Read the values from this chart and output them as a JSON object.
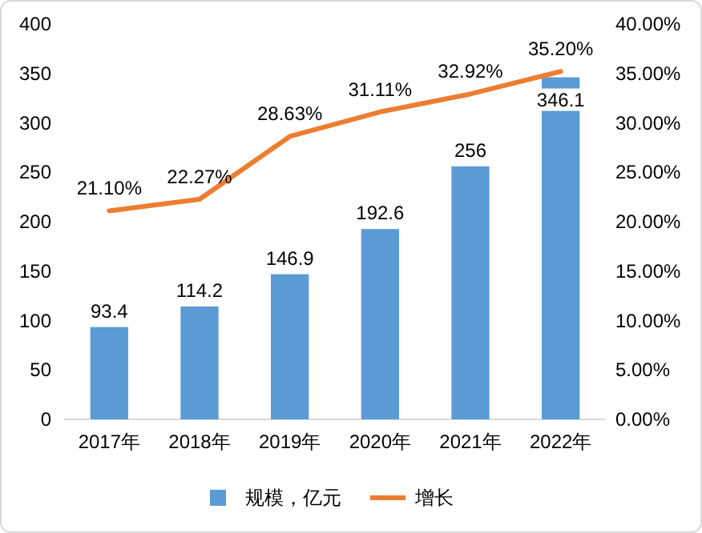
{
  "chart_data": {
    "type": "bar",
    "categories": [
      "2017年",
      "2018年",
      "2019年",
      "2020年",
      "2021年",
      "2022年"
    ],
    "series": [
      {
        "name": "规模，亿元",
        "color": "#5b9bd5",
        "values": [
          93.4,
          114.2,
          146.9,
          192.6,
          256,
          346.1
        ],
        "value_labels": [
          "93.4",
          "114.2",
          "146.9",
          "192.6",
          "256",
          "346.1"
        ]
      },
      {
        "name": "增长",
        "type": "line",
        "axis": "y2",
        "color": "#ed7d31",
        "values": [
          21.1,
          22.27,
          28.63,
          31.11,
          32.92,
          35.2
        ],
        "value_labels": [
          "21.10%",
          "22.27%",
          "28.63%",
          "31.11%",
          "32.92%",
          "35.20%"
        ]
      }
    ],
    "ylim": [
      0,
      400
    ],
    "yticks": [
      0,
      50,
      100,
      150,
      200,
      250,
      300,
      350,
      400
    ],
    "y2lim": [
      0,
      40
    ],
    "y2ticks": [
      {
        "value": 0,
        "label": "0.00%"
      },
      {
        "value": 5,
        "label": "5.00%"
      },
      {
        "value": 10,
        "label": "10.00%"
      },
      {
        "value": 15,
        "label": "15.00%"
      },
      {
        "value": 20,
        "label": "20.00%"
      },
      {
        "value": 25,
        "label": "25.00%"
      },
      {
        "value": 30,
        "label": "30.00%"
      },
      {
        "value": 35,
        "label": "35.00%"
      },
      {
        "value": 40,
        "label": "40.00%"
      }
    ],
    "legend": "bottom",
    "grid": false,
    "line_style": "solid"
  }
}
